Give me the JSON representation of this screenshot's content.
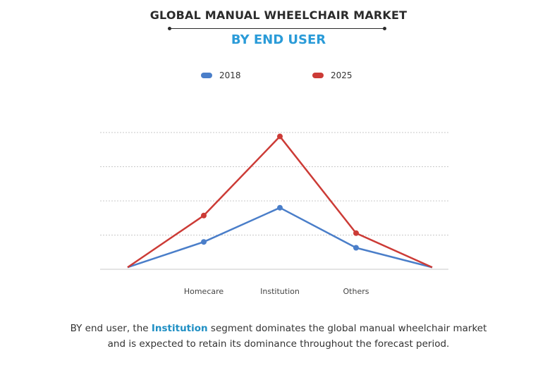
{
  "title": "GLOBAL MANUAL WHEELCHAIR MARKET",
  "subtitle": "BY END USER",
  "colors": {
    "title": "#2b2b2b",
    "subtitle": "#2a9bd8",
    "highlight": "#1f8fc4",
    "series_2018": "#4a7ec9",
    "series_2025": "#cc3b36",
    "grid": "#c8c8c8",
    "tick_label": "#444444",
    "caption": "#333333"
  },
  "chart_data": {
    "type": "line",
    "categories": [
      "",
      "Homecare",
      "Institution",
      "Others",
      ""
    ],
    "series": [
      {
        "name": "2018",
        "values": [
          0.2,
          2.8,
          6.3,
          2.2,
          0.2
        ]
      },
      {
        "name": "2025",
        "values": [
          0.2,
          5.5,
          13.6,
          3.7,
          0.2
        ]
      }
    ],
    "ylim": [
      0,
      14
    ],
    "grid": true,
    "legend_position": "top-center",
    "xlabel": "",
    "ylabel": ""
  },
  "caption": {
    "before": "BY end user, the ",
    "highlight": "Institution",
    "after_line1": " segment dominates the global manual wheelchair market",
    "line2": "and is expected to retain its dominance throughout the forecast period."
  }
}
